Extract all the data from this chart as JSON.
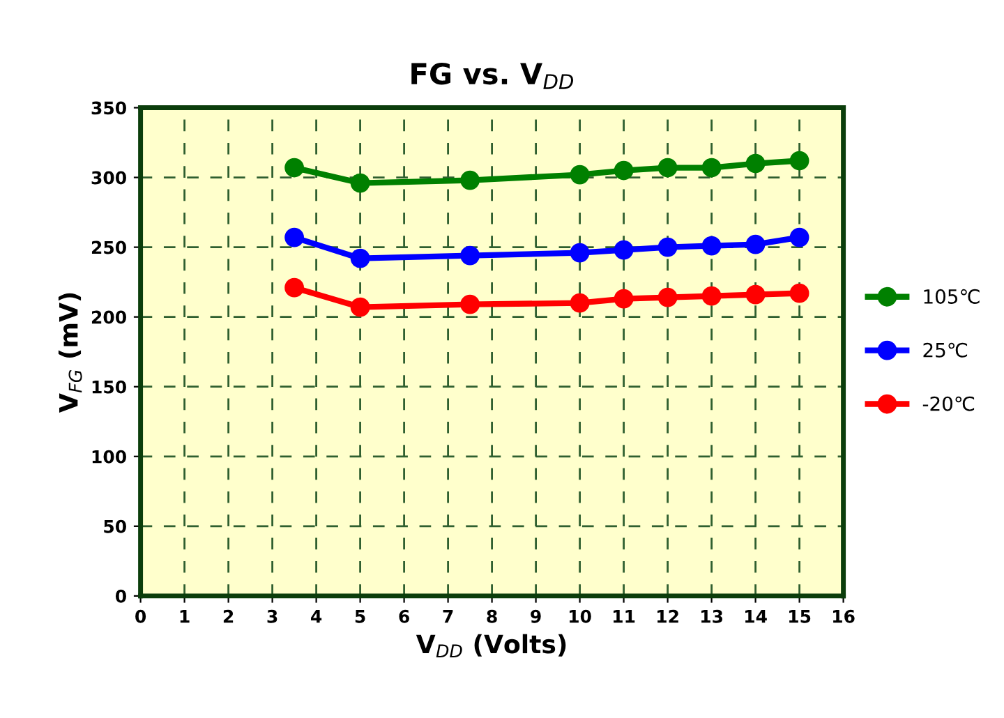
{
  "chart_data": {
    "type": "line",
    "title": "FG vs. V$_{DD}$",
    "xlabel": "V$_{DD}$ (Volts)",
    "ylabel": "V$_{FG}$ (mV)",
    "x": [
      3.5,
      5,
      7.5,
      10,
      11,
      12,
      13,
      14,
      15
    ],
    "series": [
      {
        "name": "105℃",
        "color": "#008000",
        "values": [
          307,
          296,
          298,
          302,
          305,
          307,
          307,
          310,
          312
        ]
      },
      {
        "name": "25℃",
        "color": "#0000ff",
        "values": [
          257,
          242,
          244,
          246,
          248,
          250,
          251,
          252,
          257
        ]
      },
      {
        "name": "-20℃",
        "color": "#ff0000",
        "values": [
          221,
          207,
          209,
          210,
          213,
          214,
          215,
          216,
          217
        ]
      }
    ],
    "xlim": [
      0,
      16
    ],
    "xticks": [
      0,
      1,
      2,
      3,
      4,
      5,
      6,
      7,
      8,
      9,
      10,
      11,
      12,
      13,
      14,
      15,
      16
    ],
    "ylim": [
      0,
      350
    ],
    "yticks": [
      0,
      50,
      100,
      150,
      200,
      250,
      300,
      350
    ],
    "grid": true,
    "legend": "right",
    "marker": "circle",
    "line_style": "solid"
  }
}
